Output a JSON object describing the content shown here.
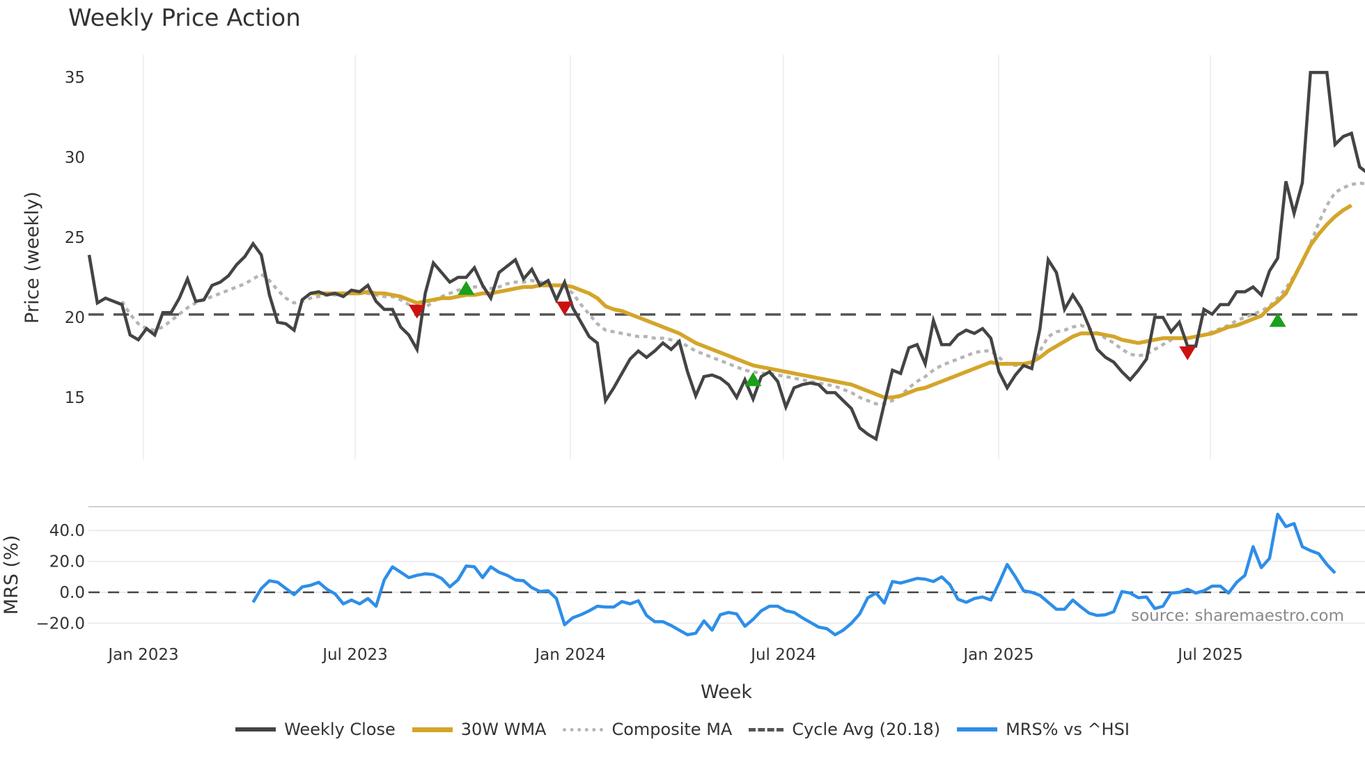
{
  "title": "Weekly Price Action",
  "price_axis": {
    "label": "Price (weekly)",
    "ticks": [
      "35",
      "30",
      "25",
      "20",
      "15"
    ]
  },
  "mrs_axis": {
    "label": "MRS (%)",
    "ticks": [
      "40.0",
      "20.0",
      "0.0",
      "−20.0"
    ]
  },
  "x_axis": {
    "label": "Week",
    "ticks": [
      "Jan 2023",
      "Jul 2023",
      "Jan 2024",
      "Jul 2024",
      "Jan 2025",
      "Jul 2025"
    ]
  },
  "watermark": "source: sharemaestro.com",
  "legend": {
    "close": "Weekly Close",
    "wma": "30W WMA",
    "composite": "Composite MA",
    "cycle": "Cycle Avg (20.18)",
    "mrs": "MRS% vs ^HSI"
  },
  "colors": {
    "close": "#444444",
    "wma": "#d4a52a",
    "composite": "#b5b5b5",
    "cycle": "#555555",
    "mrs": "#2e8ee8",
    "buy_marker": "#1aa01a",
    "sell_marker": "#cc1111"
  },
  "chart_data": [
    {
      "type": "line",
      "title": "Weekly Price Action",
      "xlabel": "Week",
      "ylabel": "Price (weekly)",
      "ylim": [
        11,
        36.5
      ],
      "x_start": "2022-11-14",
      "x_ticks": [
        "Jan 2023",
        "Jul 2023",
        "Jan 2024",
        "Jul 2024",
        "Jan 2025",
        "Jul 2025"
      ],
      "cycle_avg": 20.18,
      "series": [
        {
          "name": "Weekly Close",
          "values": [
            23.9,
            20.9,
            21.2,
            21.0,
            20.8,
            18.9,
            18.6,
            19.3,
            18.9,
            20.3,
            20.3,
            21.2,
            22.4,
            21.0,
            21.1,
            22.0,
            22.2,
            22.6,
            23.3,
            23.8,
            24.6,
            23.9,
            21.4,
            19.7,
            19.6,
            19.2,
            21.1,
            21.5,
            21.6,
            21.4,
            21.5,
            21.3,
            21.7,
            21.6,
            22.0,
            21.0,
            20.5,
            20.5,
            19.4,
            18.9,
            18.0,
            21.5,
            23.4,
            22.8,
            22.2,
            22.5,
            22.5,
            23.1,
            22.0,
            21.2,
            22.8,
            23.2,
            23.6,
            22.4,
            23.0,
            22.0,
            22.3,
            21.1,
            22.2,
            20.6,
            19.7,
            18.8,
            18.4,
            14.8,
            15.6,
            16.5,
            17.4,
            17.9,
            17.5,
            17.9,
            18.4,
            18.0,
            18.5,
            16.6,
            15.1,
            16.3,
            16.4,
            16.2,
            15.8,
            15.0,
            16.1,
            14.9,
            16.3,
            16.6,
            16.0,
            14.4,
            15.6,
            15.8,
            15.9,
            15.8,
            15.3,
            15.3,
            14.8,
            14.3,
            13.1,
            12.7,
            12.4,
            14.6,
            16.7,
            16.5,
            18.1,
            18.3,
            17.1,
            19.8,
            18.3,
            18.3,
            18.9,
            19.2,
            19.0,
            19.3,
            18.7,
            16.6,
            15.6,
            16.4,
            17.0,
            16.8,
            19.3,
            23.6,
            22.8,
            20.5,
            21.4,
            20.6,
            19.4,
            18.0,
            17.5,
            17.2,
            16.6,
            16.1,
            16.7,
            17.4,
            20.0,
            20.0,
            19.1,
            19.7,
            18.2,
            18.2,
            20.5,
            20.2,
            20.8,
            20.8,
            21.6,
            21.6,
            21.9,
            21.4,
            22.9,
            23.7,
            28.5,
            26.5,
            28.4,
            35.3,
            35.3,
            35.3,
            30.8,
            31.3,
            31.5,
            29.4,
            29.0
          ]
        },
        {
          "name": "30W WMA",
          "values": [
            null,
            null,
            null,
            null,
            null,
            null,
            null,
            null,
            null,
            null,
            null,
            null,
            null,
            null,
            null,
            null,
            null,
            null,
            null,
            null,
            null,
            null,
            null,
            null,
            null,
            null,
            null,
            21.5,
            21.5,
            21.5,
            21.5,
            21.5,
            21.5,
            21.5,
            21.6,
            21.5,
            21.5,
            21.4,
            21.3,
            21.1,
            20.9,
            21.0,
            21.1,
            21.2,
            21.2,
            21.3,
            21.4,
            21.4,
            21.5,
            21.5,
            21.6,
            21.7,
            21.8,
            21.9,
            21.9,
            22.0,
            22.0,
            22.0,
            22.0,
            21.9,
            21.7,
            21.5,
            21.2,
            20.7,
            20.5,
            20.4,
            20.2,
            20.0,
            19.8,
            19.6,
            19.4,
            19.2,
            19.0,
            18.7,
            18.4,
            18.2,
            18.0,
            17.8,
            17.6,
            17.4,
            17.2,
            17.0,
            16.9,
            16.8,
            16.7,
            16.6,
            16.5,
            16.4,
            16.3,
            16.2,
            16.1,
            16.0,
            15.9,
            15.8,
            15.6,
            15.4,
            15.2,
            15.0,
            15.0,
            15.1,
            15.3,
            15.5,
            15.6,
            15.8,
            16.0,
            16.2,
            16.4,
            16.6,
            16.8,
            17.0,
            17.2,
            17.1,
            17.1,
            17.1,
            17.1,
            17.2,
            17.5,
            17.9,
            18.2,
            18.5,
            18.8,
            19.0,
            19.0,
            19.0,
            18.9,
            18.8,
            18.6,
            18.5,
            18.4,
            18.5,
            18.6,
            18.7,
            18.7,
            18.7,
            18.7,
            18.8,
            18.9,
            19.0,
            19.2,
            19.4,
            19.5,
            19.7,
            19.9,
            20.1,
            20.6,
            21.0,
            21.5,
            22.5,
            23.5,
            24.5,
            25.2,
            25.8,
            26.3,
            26.7,
            27.0
          ]
        },
        {
          "name": "Composite MA",
          "values": [
            null,
            null,
            null,
            null,
            21.0,
            20.2,
            19.6,
            19.3,
            19.2,
            19.4,
            19.8,
            20.2,
            20.6,
            20.9,
            21.1,
            21.3,
            21.5,
            21.7,
            21.9,
            22.1,
            22.4,
            22.7,
            22.3,
            21.7,
            21.2,
            20.9,
            21.0,
            21.2,
            21.3,
            21.4,
            21.4,
            21.4,
            21.5,
            21.5,
            21.5,
            21.4,
            21.3,
            21.3,
            21.1,
            20.8,
            20.4,
            20.6,
            21.0,
            21.3,
            21.5,
            21.7,
            21.8,
            21.9,
            21.9,
            21.8,
            21.9,
            22.1,
            22.2,
            22.2,
            22.3,
            22.2,
            22.2,
            22.0,
            21.9,
            21.5,
            20.8,
            20.2,
            19.6,
            19.2,
            19.1,
            19.0,
            18.9,
            18.8,
            18.8,
            18.7,
            18.7,
            18.6,
            18.5,
            18.2,
            17.9,
            17.7,
            17.5,
            17.3,
            17.1,
            16.9,
            16.7,
            16.6,
            16.5,
            16.5,
            16.4,
            16.3,
            16.2,
            16.1,
            16.0,
            15.9,
            15.8,
            15.7,
            15.5,
            15.3,
            15.0,
            14.8,
            14.6,
            14.6,
            14.8,
            15.1,
            15.6,
            16.0,
            16.3,
            16.7,
            17.0,
            17.2,
            17.4,
            17.6,
            17.8,
            17.9,
            17.9,
            17.5,
            17.1,
            17.0,
            17.1,
            17.2,
            17.9,
            18.8,
            19.1,
            19.2,
            19.4,
            19.5,
            19.3,
            19.0,
            18.7,
            18.4,
            18.0,
            17.7,
            17.6,
            17.7,
            18.0,
            18.3,
            18.6,
            18.7,
            18.7,
            18.8,
            18.9,
            19.1,
            19.3,
            19.5,
            19.8,
            20.0,
            20.2,
            20.4,
            20.7,
            21.2,
            21.8,
            22.6,
            23.4,
            24.6,
            25.9,
            27.0,
            27.8,
            28.1,
            28.3,
            28.4,
            28.3
          ]
        },
        {
          "name": "Cycle Avg (20.18)",
          "values": [
            20.18
          ]
        }
      ],
      "markers": [
        {
          "type": "sell",
          "week_index": 40,
          "price": 20.4
        },
        {
          "type": "buy",
          "week_index": 46,
          "price": 21.8
        },
        {
          "type": "sell",
          "week_index": 58,
          "price": 20.6
        },
        {
          "type": "buy",
          "week_index": 81,
          "price": 16.1
        },
        {
          "type": "sell",
          "week_index": 134,
          "price": 17.8
        },
        {
          "type": "buy",
          "week_index": 145,
          "price": 19.8
        }
      ]
    },
    {
      "type": "line",
      "title": "",
      "xlabel": "Week",
      "ylabel": "MRS (%)",
      "ylim": [
        -30,
        55
      ],
      "series": [
        {
          "name": "MRS% vs ^HSI",
          "start_index": 20,
          "values": [
            -6.5,
            2.5,
            7.5,
            6.5,
            2.5,
            -1.5,
            3.5,
            4.5,
            6.5,
            2.0,
            -1.0,
            -7.5,
            -5.0,
            -7.5,
            -4.0,
            -9.0,
            8.0,
            16.5,
            13.0,
            9.5,
            11.0,
            12.0,
            11.5,
            9.0,
            3.5,
            8.0,
            17.0,
            16.5,
            9.5,
            16.5,
            13.0,
            11.0,
            8.0,
            7.5,
            3.0,
            0.5,
            1.0,
            -4.0,
            -21.0,
            -16.5,
            -14.5,
            -12.0,
            -9.0,
            -9.5,
            -9.5,
            -6.0,
            -7.5,
            -5.5,
            -15.0,
            -19.0,
            -19.0,
            -21.5,
            -24.5,
            -27.5,
            -26.5,
            -18.5,
            -24.5,
            -14.5,
            -13.0,
            -14.0,
            -22.0,
            -17.5,
            -12.0,
            -9.0,
            -9.0,
            -12.0,
            -13.0,
            -16.5,
            -19.5,
            -22.5,
            -23.5,
            -27.5,
            -24.5,
            -20.0,
            -14.0,
            -3.5,
            -0.5,
            -7.0,
            7.0,
            6.0,
            7.5,
            9.0,
            8.5,
            7.0,
            10.0,
            5.0,
            -4.5,
            -6.5,
            -4.0,
            -3.0,
            -5.0,
            6.0,
            18.0,
            10.0,
            1.0,
            0.0,
            -2.0,
            -6.5,
            -11.0,
            -11.0,
            -5.0,
            -9.5,
            -13.5,
            -15.0,
            -14.5,
            -12.5,
            0.5,
            -0.5,
            -3.5,
            -3.0,
            -10.5,
            -9.0,
            -0.5,
            0.0,
            2.0,
            -0.5,
            1.0,
            4.0,
            4.0,
            -0.5,
            6.5,
            11.0,
            29.5,
            16.0,
            22.0,
            50.5,
            42.5,
            44.5,
            29.5,
            27.0,
            25.0,
            18.0,
            12.5
          ]
        }
      ]
    }
  ]
}
